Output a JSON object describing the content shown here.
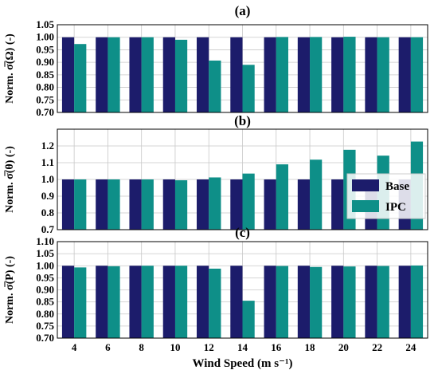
{
  "colors": {
    "base": "#1c1c6b",
    "ipc": "#0e8f88",
    "grid": "#c8c8c8"
  },
  "chart_data": [
    {
      "type": "bar",
      "title": "(a)",
      "ylabel": "Norm. σ̅(Ω) (-)",
      "categories": [
        "4",
        "6",
        "8",
        "10",
        "12",
        "14",
        "16",
        "18",
        "20",
        "22",
        "24"
      ],
      "ylim": [
        0.7,
        1.05
      ],
      "yticks": [
        "0.70",
        "0.75",
        "0.80",
        "0.85",
        "0.90",
        "0.95",
        "1.00",
        "1.05"
      ],
      "ytick_values": [
        0.7,
        0.75,
        0.8,
        0.85,
        0.9,
        0.95,
        1.0,
        1.05
      ],
      "grid": true,
      "series": [
        {
          "name": "Base",
          "values": [
            1.0,
            1.0,
            1.0,
            1.0,
            1.0,
            1.0,
            1.0,
            1.0,
            1.0,
            1.0,
            1.0
          ]
        },
        {
          "name": "IPC",
          "values": [
            0.973,
            1.0,
            1.0,
            0.99,
            0.907,
            0.89,
            1.001,
            1.001,
            1.002,
            1.0,
            1.0
          ]
        }
      ]
    },
    {
      "type": "bar",
      "title": "(b)",
      "ylabel": "Norm. σ̅(θ) (-)",
      "categories": [
        "4",
        "6",
        "8",
        "10",
        "12",
        "14",
        "16",
        "18",
        "20",
        "22",
        "24"
      ],
      "ylim": [
        0.7,
        1.3
      ],
      "yticks": [
        "0.7",
        "0.8",
        "0.9",
        "1.0",
        "1.1",
        "1.2"
      ],
      "ytick_values": [
        0.7,
        0.8,
        0.9,
        1.0,
        1.1,
        1.2
      ],
      "grid": true,
      "legend_position": "right",
      "series": [
        {
          "name": "Base",
          "values": [
            1.0,
            1.0,
            1.0,
            1.0,
            1.0,
            1.0,
            1.0,
            1.0,
            1.0,
            1.0,
            1.0
          ]
        },
        {
          "name": "IPC",
          "values": [
            1.0,
            1.0,
            1.0,
            0.995,
            1.012,
            1.035,
            1.09,
            1.118,
            1.177,
            1.142,
            1.226
          ]
        }
      ]
    },
    {
      "type": "bar",
      "title": "(c)",
      "ylabel": "Norm. σ̅(P) (-)",
      "xlabel": "Wind Speed (m s⁻¹)",
      "categories": [
        "4",
        "6",
        "8",
        "10",
        "12",
        "14",
        "16",
        "18",
        "20",
        "22",
        "24"
      ],
      "ylim": [
        0.7,
        1.1
      ],
      "yticks": [
        "0.70",
        "0.75",
        "0.80",
        "0.85",
        "0.90",
        "0.95",
        "1.00",
        "1.05",
        "1.10"
      ],
      "ytick_values": [
        0.7,
        0.75,
        0.8,
        0.85,
        0.9,
        0.95,
        1.0,
        1.05,
        1.1
      ],
      "grid": true,
      "series": [
        {
          "name": "Base",
          "values": [
            1.0,
            1.0,
            1.0,
            1.0,
            1.0,
            1.0,
            1.0,
            1.0,
            1.0,
            1.0,
            1.0
          ]
        },
        {
          "name": "IPC",
          "values": [
            0.993,
            0.998,
            1.0,
            1.0,
            0.988,
            0.855,
            0.999,
            0.995,
            0.997,
            0.999,
            1.001
          ]
        }
      ]
    }
  ],
  "legend": {
    "entries": [
      "Base",
      "IPC"
    ]
  }
}
